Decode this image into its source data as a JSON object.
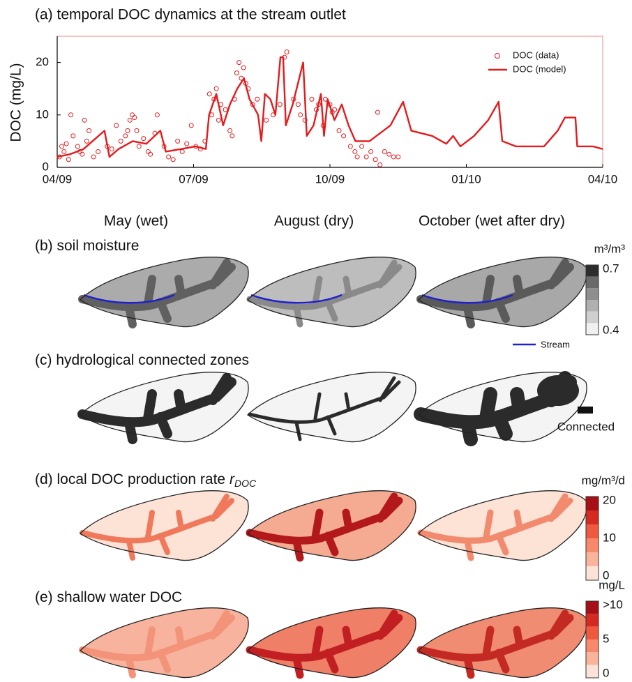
{
  "chart_data": {
    "type": "line",
    "title": "(a) temporal DOC dynamics at the stream outlet",
    "ylabel": "DOC (mg/L)",
    "xlim": [
      0,
      12
    ],
    "xticks": [
      {
        "value": 0,
        "label": "04/09"
      },
      {
        "value": 3,
        "label": "07/09"
      },
      {
        "value": 6,
        "label": "10/09"
      },
      {
        "value": 9,
        "label": "01/10"
      },
      {
        "value": 12,
        "label": "04/10"
      }
    ],
    "ylim": [
      0,
      25
    ],
    "yticks": [
      0,
      10,
      20
    ],
    "legend": "upper right",
    "series": [
      {
        "name": "DOC (data)",
        "style": "markers",
        "color": "#e41a1c",
        "x": [
          0.05,
          0.1,
          0.15,
          0.2,
          0.25,
          0.3,
          0.35,
          0.45,
          0.5,
          0.55,
          0.6,
          0.65,
          0.7,
          0.8,
          0.9,
          1.1,
          1.2,
          1.3,
          1.4,
          1.5,
          1.55,
          1.6,
          1.65,
          1.7,
          1.75,
          1.8,
          1.9,
          2.0,
          2.05,
          2.15,
          2.2,
          2.35,
          2.45,
          2.55,
          2.65,
          2.75,
          2.85,
          2.95,
          3.05,
          3.15,
          3.25,
          3.35,
          3.4,
          3.45,
          3.5,
          3.55,
          3.6,
          3.7,
          3.8,
          3.85,
          3.9,
          3.95,
          4.0,
          4.05,
          4.1,
          4.15,
          4.2,
          4.3,
          4.4,
          4.6,
          4.75,
          4.9,
          5.0,
          5.05,
          5.2,
          5.3,
          5.35,
          5.45,
          5.6,
          5.7,
          5.75,
          5.85,
          5.9,
          6.0,
          6.05,
          6.1,
          6.2,
          6.3,
          6.45,
          6.55,
          6.6,
          6.7,
          6.8,
          6.9,
          7.0,
          7.05,
          7.1,
          7.2,
          7.3,
          7.4,
          7.5
        ],
        "values": [
          2,
          4,
          3,
          4.5,
          1.5,
          10,
          6,
          4,
          3,
          2.5,
          9,
          5,
          7,
          2,
          3,
          4,
          3.5,
          8,
          5,
          6,
          7,
          9,
          10,
          9.5,
          7,
          4,
          5.5,
          3,
          2.5,
          6.5,
          10,
          4,
          2,
          1.5,
          5,
          3,
          4.5,
          8,
          4,
          3.5,
          5,
          14,
          10,
          13,
          15,
          9,
          12,
          11,
          7,
          6,
          13,
          18,
          20,
          17,
          19,
          16,
          15,
          12,
          13,
          9,
          10,
          12,
          21,
          22,
          13,
          12,
          10,
          9,
          13,
          11,
          12,
          8,
          13,
          12,
          10.5,
          11,
          7,
          6,
          4,
          3,
          2,
          4,
          2,
          3,
          1.5,
          10.5,
          0.5,
          3,
          2.5,
          2,
          2
        ]
      },
      {
        "name": "DOC (model)",
        "style": "line",
        "color": "#e41a1c",
        "x": [
          0,
          0.28,
          0.58,
          1.04,
          1.15,
          1.35,
          1.66,
          1.96,
          2.27,
          2.39,
          2.73,
          3.04,
          3.27,
          3.34,
          3.5,
          3.65,
          3.8,
          3.96,
          4.11,
          4.23,
          4.42,
          4.49,
          4.57,
          4.69,
          4.8,
          4.91,
          4.97,
          5.03,
          5.18,
          5.41,
          5.49,
          5.64,
          5.8,
          5.87,
          5.95,
          6.1,
          6.26,
          6.41,
          6.56,
          6.87,
          7.33,
          7.61,
          7.79,
          8.25,
          8.56,
          8.71,
          8.87,
          9.17,
          9.48,
          9.71,
          9.79,
          10.09,
          10.71,
          11.01,
          11.17,
          11.4,
          11.44,
          11.78,
          12
        ],
        "values": [
          2,
          2.5,
          3.5,
          7,
          2,
          3.5,
          5,
          4.5,
          7,
          3,
          3.5,
          4,
          3.5,
          10,
          14,
          8,
          12,
          15,
          17,
          13,
          10,
          5,
          14,
          13,
          10,
          21,
          21,
          8,
          12,
          20,
          6,
          8,
          14,
          6,
          13,
          9,
          12,
          8,
          5,
          5,
          8,
          12.5,
          7,
          6,
          4.5,
          6,
          4,
          6,
          9,
          12.5,
          5,
          4,
          4,
          7,
          9.5,
          9.5,
          4,
          4,
          3.5
        ]
      }
    ]
  },
  "columns": [
    "May (wet)",
    "August (dry)",
    "October (wet after dry)"
  ],
  "panels": [
    {
      "title": "(b) soil moisture",
      "unit": "m³/m³",
      "ticks": [
        "0.7",
        "0.4"
      ],
      "legend": "Stream"
    },
    {
      "title": "(c) hydrological connected zones",
      "legend": "Connected"
    },
    {
      "title": "(d) local DOC production rate ",
      "symbol": "r",
      "subscript": "DOC",
      "unit": "mg/m³/d",
      "ticks": [
        "20",
        "10",
        "0"
      ]
    },
    {
      "title": "(e) shallow water DOC",
      "unit": "mg/L",
      "ticks": [
        ">10",
        "5",
        "0"
      ]
    }
  ]
}
